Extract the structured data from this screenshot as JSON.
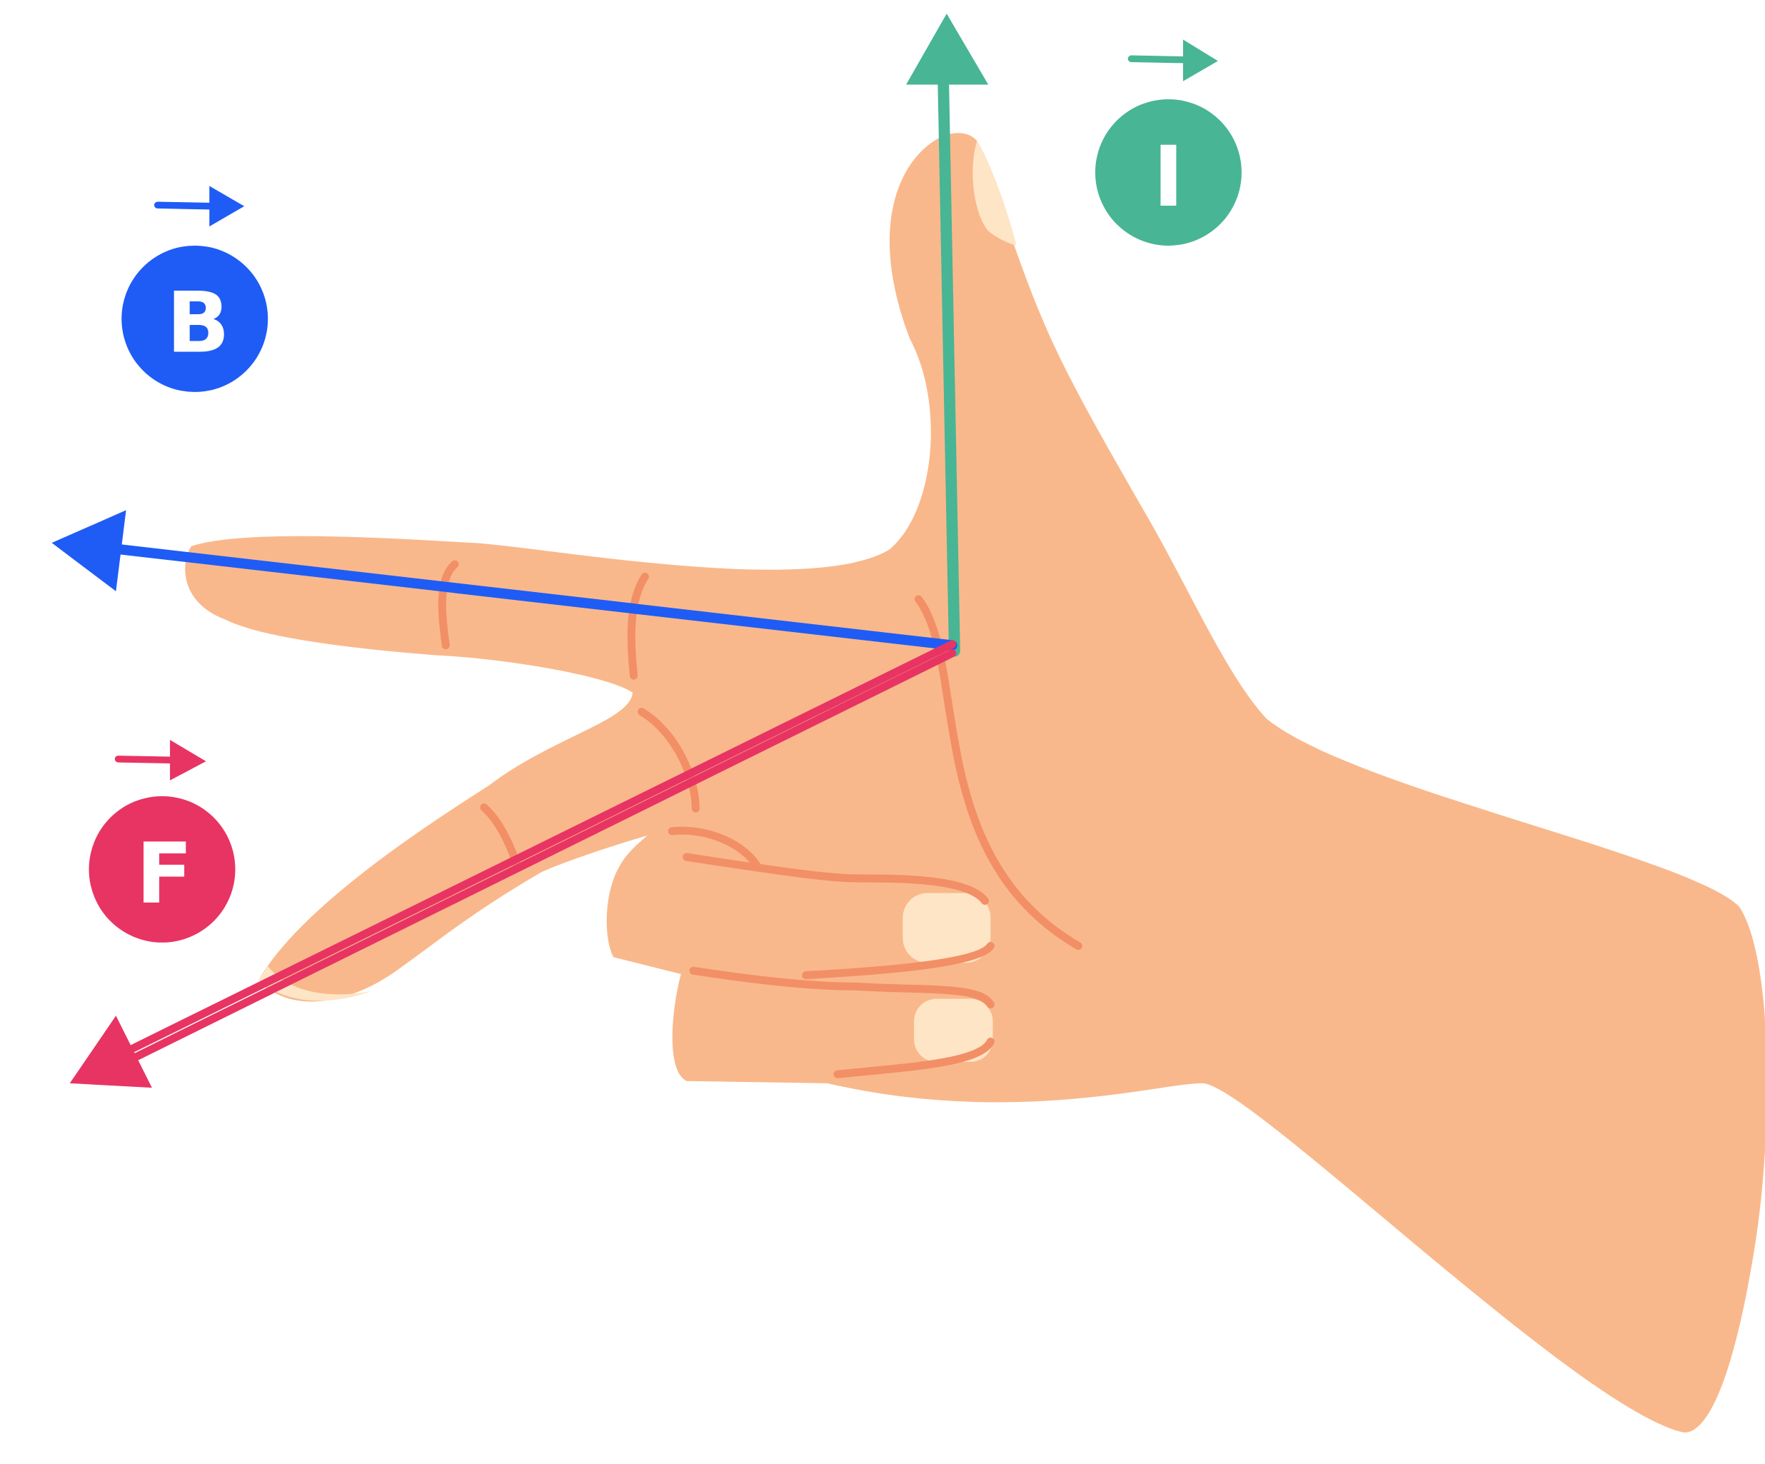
{
  "vectors": [
    {
      "label": "B"
    },
    {
      "label": "I"
    },
    {
      "label": "F"
    }
  ]
}
